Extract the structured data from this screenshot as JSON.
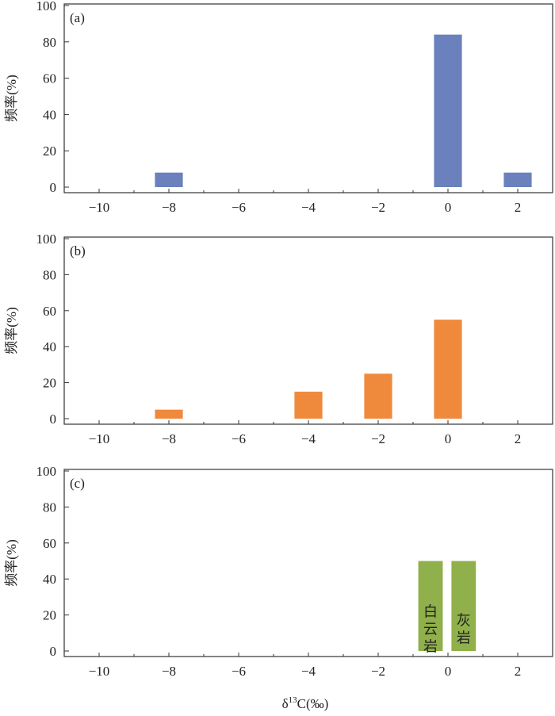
{
  "chart_data": [
    {
      "type": "bar",
      "panel_label": "(a)",
      "ylabel": "频率(%)",
      "xlabel": "",
      "xlim": [
        -11,
        3
      ],
      "ylim": [
        0,
        100
      ],
      "xticks": [
        -10,
        -8,
        -6,
        -4,
        -2,
        0,
        2
      ],
      "xtick_labels": [
        "−10",
        "−8",
        "−6",
        "−4",
        "−2",
        "0",
        "2"
      ],
      "yticks": [
        0,
        20,
        40,
        60,
        80,
        100
      ],
      "bar_width": 0.8,
      "color": "#6a81bd",
      "bars": [
        {
          "x": -8,
          "value": 8
        },
        {
          "x": 0,
          "value": 84
        },
        {
          "x": 2,
          "value": 8
        }
      ]
    },
    {
      "type": "bar",
      "panel_label": "(b)",
      "ylabel": "频率(%)",
      "xlabel": "",
      "xlim": [
        -11,
        3
      ],
      "ylim": [
        0,
        100
      ],
      "xticks": [
        -10,
        -8,
        -6,
        -4,
        -2,
        0,
        2
      ],
      "xtick_labels": [
        "−10",
        "−8",
        "−6",
        "−4",
        "−2",
        "0",
        "2"
      ],
      "yticks": [
        0,
        20,
        40,
        60,
        80,
        100
      ],
      "bar_width": 0.8,
      "color": "#ef8a3c",
      "bars": [
        {
          "x": -8,
          "value": 5
        },
        {
          "x": -4,
          "value": 15
        },
        {
          "x": -2,
          "value": 25
        },
        {
          "x": 0,
          "value": 55
        }
      ]
    },
    {
      "type": "bar",
      "panel_label": "(c)",
      "ylabel": "频率(%)",
      "xlabel": "δ13C(‰)",
      "xlabel_parts": {
        "prefix": "δ",
        "sup": "13",
        "suffix": "C(‰)"
      },
      "xlim": [
        -11,
        3
      ],
      "ylim": [
        0,
        100
      ],
      "xticks": [
        -10,
        -8,
        -6,
        -4,
        -2,
        0,
        2
      ],
      "xtick_labels": [
        "−10",
        "−8",
        "−6",
        "−4",
        "−2",
        "0",
        "2"
      ],
      "yticks": [
        0,
        20,
        40,
        60,
        80,
        100
      ],
      "bar_width": 0.7,
      "color": "#8fb04a",
      "bars": [
        {
          "x": -0.5,
          "value": 50,
          "label": "白云岩"
        },
        {
          "x": 0.45,
          "value": 50,
          "label": "灰岩"
        }
      ]
    }
  ]
}
